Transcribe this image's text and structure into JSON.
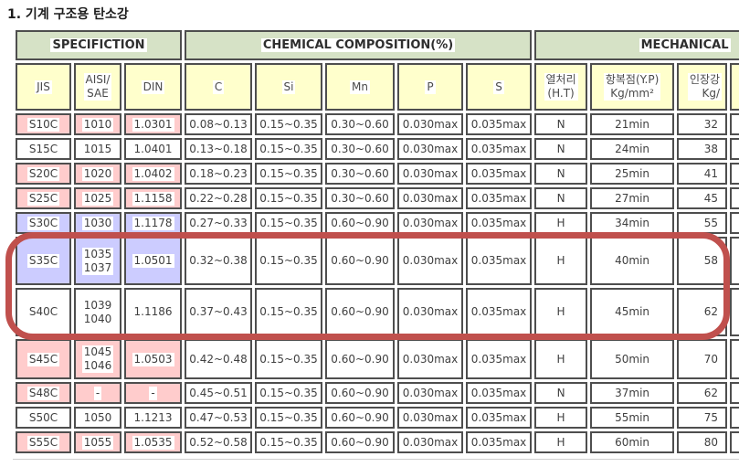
{
  "title": "1. 기계 구조용 탄소강",
  "colors": {
    "group_header_green": "#D6E2C6",
    "subheader_yellow": "#FFFFCC",
    "row_highlight_pink": "#FFCCCC",
    "row_highlight_blue": "#CCCCFF",
    "cell_border": "#4E4E4E",
    "annotation_red": "#C0504D"
  },
  "table": {
    "groups": [
      {
        "label": "SPECIFICTION"
      },
      {
        "label": "CHEMICAL COMPOSITION(%)"
      },
      {
        "label": "MECHANICAL"
      }
    ],
    "columns": [
      "JIS",
      "AISI/\nSAE",
      "DIN",
      "C",
      "Si",
      "Mn",
      "P",
      "S",
      "열처리\n(H.T)",
      "항복점(Y.P)\nKg/mm²",
      "인장강\nKg/"
    ],
    "column_keys": [
      "jis",
      "aisi",
      "din",
      "c",
      "si",
      "mn",
      "p",
      "s",
      "ht",
      "yp",
      "ts"
    ],
    "rows": [
      {
        "highlight": "pink",
        "cells": [
          "S10C",
          "1010",
          "1.0301",
          "0.08~0.13",
          "0.15~0.35",
          "0.30~0.60",
          "0.030max",
          "0.035max",
          "N",
          "21min",
          "32"
        ]
      },
      {
        "highlight": "none",
        "cells": [
          "S15C",
          "1015",
          "1.0401",
          "0.13~0.18",
          "0.15~0.35",
          "0.30~0.60",
          "0.030max",
          "0.035max",
          "N",
          "24min",
          "38"
        ]
      },
      {
        "highlight": "pink",
        "cells": [
          "S20C",
          "1020",
          "1.0402",
          "0.18~0.23",
          "0.15~0.35",
          "0.30~0.60",
          "0.030max",
          "0.035max",
          "N",
          "25min",
          "41"
        ]
      },
      {
        "highlight": "pink",
        "cells": [
          "S25C",
          "1025",
          "1.1158",
          "0.22~0.28",
          "0.15~0.35",
          "0.30~0.60",
          "0.030max",
          "0.035max",
          "N",
          "27min",
          "45"
        ]
      },
      {
        "highlight": "blue",
        "cells": [
          "S30C",
          "1030",
          "1.1178",
          "0.27~0.33",
          "0.15~0.35",
          "0.60~0.90",
          "0.030max",
          "0.035max",
          "H",
          "34min",
          "55"
        ]
      },
      {
        "highlight": "blue",
        "cells": [
          "S35C",
          "1035\n1037",
          "1.0501",
          "0.32~0.38",
          "0.15~0.35",
          "0.60~0.90",
          "0.030max",
          "0.035max",
          "H",
          "40min",
          "58"
        ]
      },
      {
        "highlight": "none",
        "cells": [
          "S40C",
          "1039\n1040",
          "1.1186",
          "0.37~0.43",
          "0.15~0.35",
          "0.60~0.90",
          "0.030max",
          "0.035max",
          "H",
          "45min",
          "62"
        ]
      },
      {
        "highlight": "pink",
        "cells": [
          "S45C",
          "1045\n1046",
          "1.0503",
          "0.42~0.48",
          "0.15~0.35",
          "0.60~0.90",
          "0.030max",
          "0.035max",
          "H",
          "50min",
          "70"
        ]
      },
      {
        "highlight": "pink",
        "cells": [
          "S48C",
          "-",
          "-",
          "0.45~0.51",
          "0.15~0.35",
          "0.60~0.90",
          "0.030max",
          "0.035max",
          "N",
          "37min",
          "62"
        ]
      },
      {
        "highlight": "none",
        "cells": [
          "S50C",
          "1050",
          "1.1213",
          "0.47~0.53",
          "0.15~0.35",
          "0.60~0.90",
          "0.030max",
          "0.035max",
          "H",
          "55min",
          "75"
        ]
      },
      {
        "highlight": "pink",
        "cells": [
          "S55C",
          "1055",
          "1.0535",
          "0.52~0.58",
          "0.15~0.35",
          "0.60~0.90",
          "0.030max",
          "0.035max",
          "H",
          "60min",
          "80"
        ]
      }
    ]
  },
  "annotation": {
    "shape": "rounded-rectangle",
    "color": "#C0504D",
    "rows_circled": [
      "S35C",
      "S40C"
    ]
  }
}
